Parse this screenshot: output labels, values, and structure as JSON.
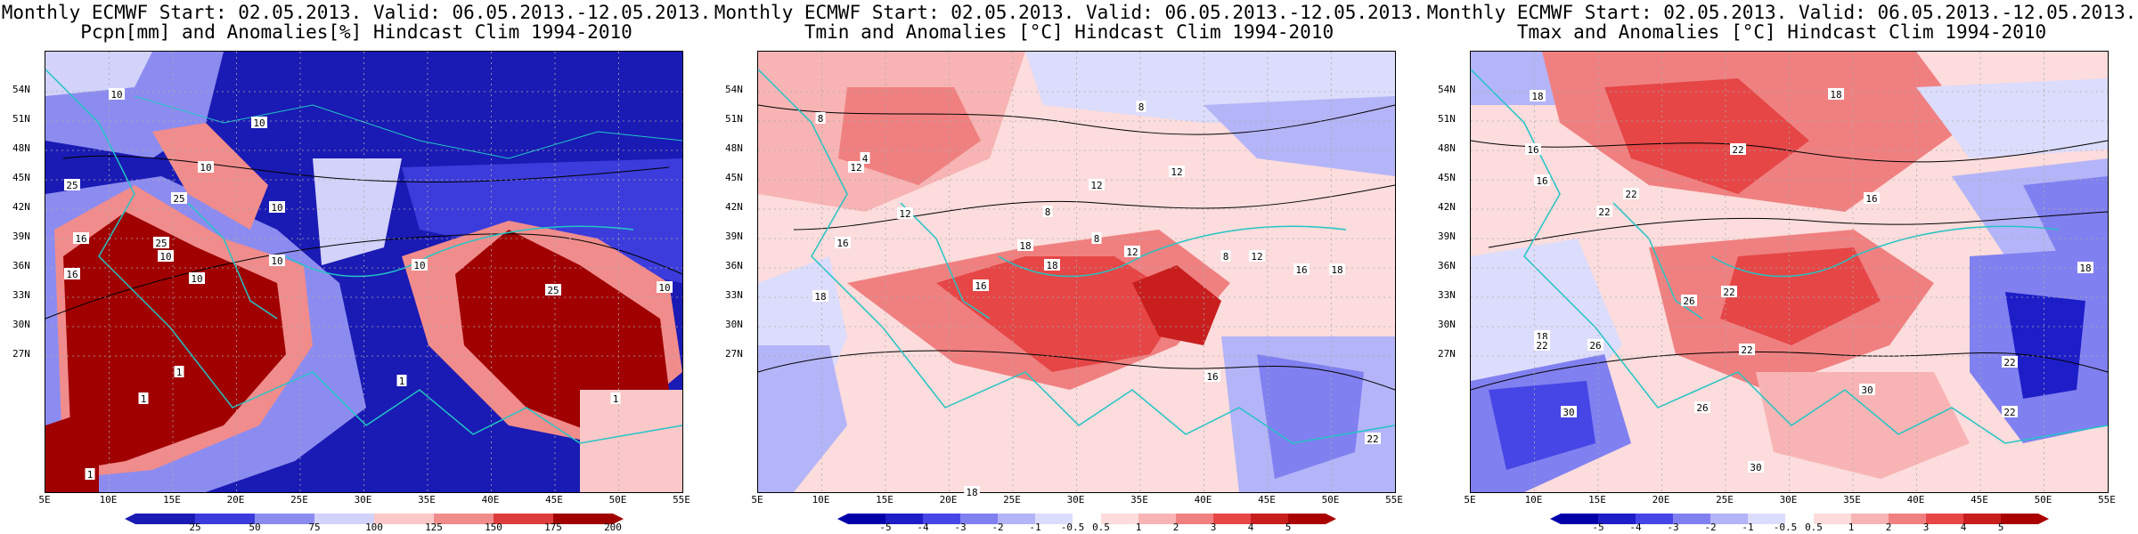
{
  "panels": [
    {
      "title_line1": "Monthly ECMWF Start: 02.05.2013. Valid: 06.05.2013.-12.05.2013.",
      "title_line2": "Pcpn[mm] and Anomalies[%] Hindcast Clim 1994-2010",
      "colorbar_labels": [
        "25",
        "50",
        "75",
        "100",
        "125",
        "150",
        "175",
        "200"
      ],
      "contour_labels": [
        "10",
        "10",
        "10",
        "25",
        "25",
        "10",
        "16",
        "25",
        "10",
        "10",
        "16",
        "10",
        "1",
        "1",
        "1",
        "10",
        "25",
        "10",
        "1",
        "1"
      ]
    },
    {
      "title_line1": "Monthly ECMWF Start: 02.05.2013. Valid: 06.05.2013.-12.05.2013.",
      "title_line2": "Tmin and Anomalies [°C] Hindcast Clim 1994-2010",
      "colorbar_labels": [
        "-5",
        "-4",
        "-3",
        "-2",
        "-1",
        "-0.5",
        "0.5",
        "1",
        "2",
        "3",
        "4",
        "5"
      ],
      "contour_labels": [
        "8",
        "8",
        "4",
        "12",
        "8",
        "12",
        "12",
        "18",
        "12",
        "16",
        "18",
        "12",
        "8",
        "12",
        "16",
        "18",
        "16",
        "22",
        "18",
        "16",
        "18",
        "8"
      ]
    },
    {
      "title_line1": "Monthly ECMWF Start: 02.05.2013. Valid: 06.05.2013.-12.05.2013.",
      "title_line2": "Tmax and Anomalies [°C] Hindcast Clim 1994-2010",
      "colorbar_labels": [
        "-5",
        "-4",
        "-3",
        "-2",
        "-1",
        "-0.5",
        "0.5",
        "1",
        "2",
        "3",
        "4",
        "5"
      ],
      "contour_labels": [
        "18",
        "18",
        "16",
        "22",
        "16",
        "22",
        "22",
        "16",
        "22",
        "26",
        "18",
        "22",
        "26",
        "30",
        "22",
        "26",
        "30",
        "22",
        "30",
        "18",
        "22"
      ]
    }
  ],
  "lat_labels": [
    "54N",
    "51N",
    "48N",
    "45N",
    "42N",
    "39N",
    "36N",
    "33N",
    "30N",
    "27N"
  ],
  "lon_labels": [
    "5E",
    "10E",
    "15E",
    "20E",
    "25E",
    "30E",
    "35E",
    "40E",
    "45E",
    "50E",
    "55E"
  ],
  "colors": {
    "precip_scale": [
      "#1a1ab4",
      "#3c3cdc",
      "#8c8cf0",
      "#d2d2fa",
      "#ffffff",
      "#fac8c8",
      "#f08c8c",
      "#dc3c3c",
      "#a00000"
    ],
    "temp_scale": [
      "#0000aa",
      "#1e1ec8",
      "#4646e6",
      "#8080f0",
      "#b4b4f8",
      "#dcdcfc",
      "#ffffff",
      "#fcdcdc",
      "#f8b4b4",
      "#f08080",
      "#e64646",
      "#c81e1e",
      "#aa0000"
    ],
    "coast": "#22c5c5",
    "contour": "#000000"
  }
}
